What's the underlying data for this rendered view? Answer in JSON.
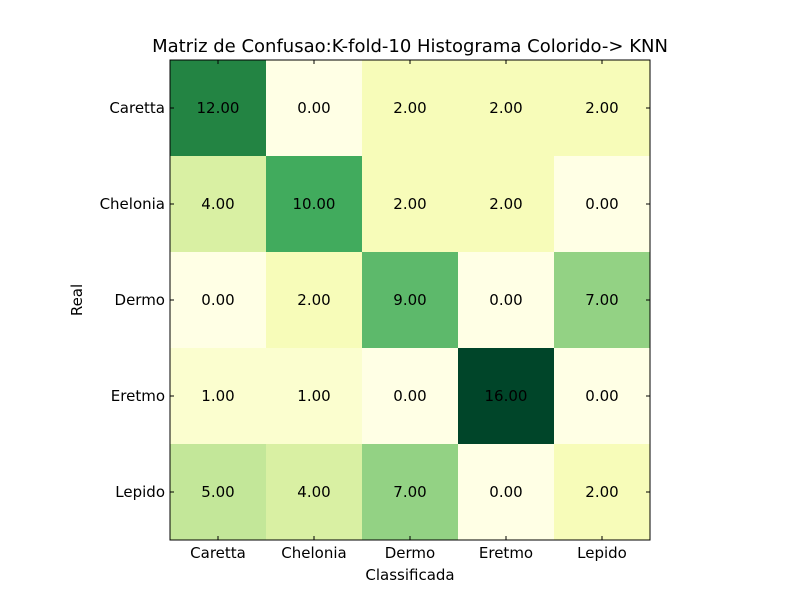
{
  "chart_data": {
    "type": "heatmap",
    "title": "Matriz de Confusao:K-fold-10 Histograma Colorido-> KNN",
    "xlabel": "Classificada",
    "ylabel": "Real",
    "x_categories": [
      "Caretta",
      "Chelonia",
      "Dermo",
      "Eretmo",
      "Lepido"
    ],
    "y_categories": [
      "Caretta",
      "Chelonia",
      "Dermo",
      "Eretmo",
      "Lepido"
    ],
    "values": [
      [
        12,
        0,
        2,
        2,
        2
      ],
      [
        4,
        10,
        2,
        2,
        0
      ],
      [
        0,
        2,
        9,
        0,
        7
      ],
      [
        1,
        1,
        0,
        16,
        0
      ],
      [
        5,
        4,
        7,
        0,
        2
      ]
    ],
    "cell_labels": [
      [
        "12.00",
        "0.00",
        "2.00",
        "2.00",
        "2.00"
      ],
      [
        "4.00",
        "10.00",
        "2.00",
        "2.00",
        "0.00"
      ],
      [
        "0.00",
        "2.00",
        "9.00",
        "0.00",
        "7.00"
      ],
      [
        "1.00",
        "1.00",
        "0.00",
        "16.00",
        "0.00"
      ],
      [
        "5.00",
        "4.00",
        "7.00",
        "0.00",
        "2.00"
      ]
    ],
    "value_range": [
      0,
      16
    ],
    "colormap": "YlGn",
    "grid": false
  }
}
